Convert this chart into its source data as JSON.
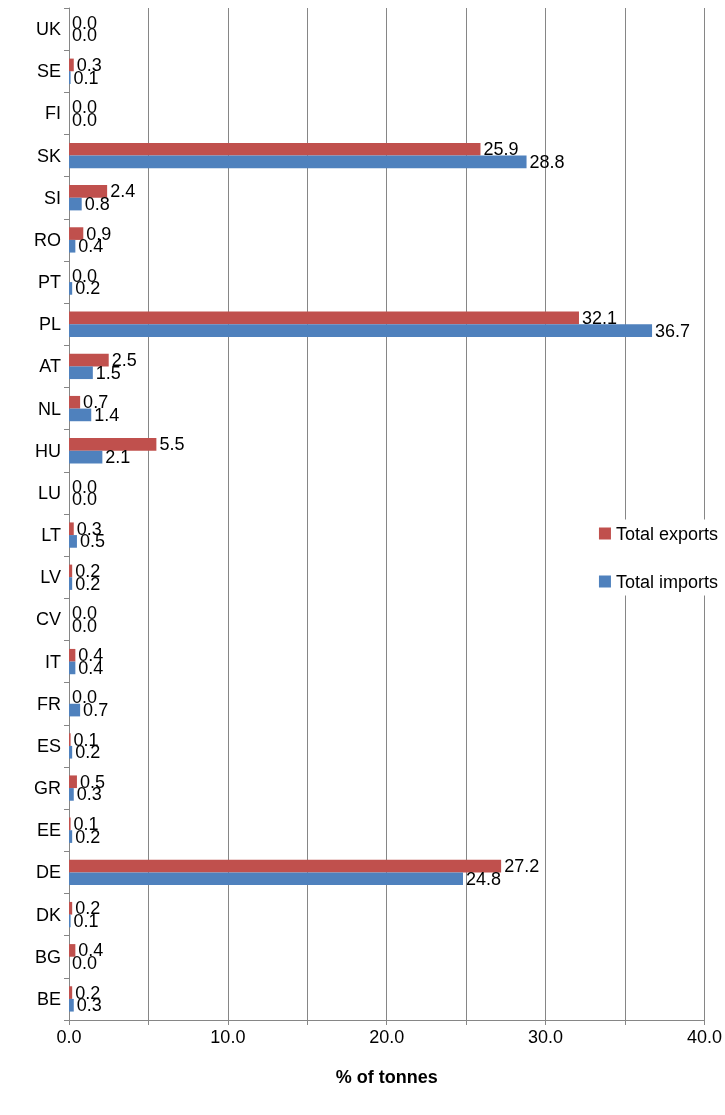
{
  "chart_data": {
    "type": "bar",
    "orientation": "horizontal",
    "xlabel": "% of tonnes",
    "categories": [
      "UK",
      "SE",
      "FI",
      "SK",
      "SI",
      "RO",
      "PT",
      "PL",
      "AT",
      "NL",
      "HU",
      "LU",
      "LT",
      "LV",
      "CV",
      "IT",
      "FR",
      "ES",
      "GR",
      "EE",
      "DE",
      "DK",
      "BG",
      "BE"
    ],
    "series": [
      {
        "name": "Total exports",
        "color": "#c0504d",
        "values": [
          0.0,
          0.3,
          0.0,
          25.9,
          2.4,
          0.9,
          0.0,
          32.1,
          2.5,
          0.7,
          5.5,
          0.0,
          0.3,
          0.2,
          0.0,
          0.4,
          0.0,
          0.1,
          0.5,
          0.1,
          27.2,
          0.2,
          0.4,
          0.2
        ],
        "value_labels": [
          "0.0",
          "0.3",
          "0.0",
          "25.9",
          "2.4",
          "0.9",
          "0.0",
          "32.1",
          "2.5",
          "0.7",
          "5.5",
          "0.0",
          "0.3",
          "0.2",
          "0.0",
          "0.4",
          "0.0",
          "0.1",
          "0.5",
          "0.1",
          "27.2",
          "0.2",
          "0.4",
          "0.2"
        ]
      },
      {
        "name": "Total imports",
        "color": "#4f81bd",
        "values": [
          0.0,
          0.1,
          0.0,
          28.8,
          0.8,
          0.4,
          0.2,
          36.7,
          1.5,
          1.4,
          2.1,
          0.0,
          0.5,
          0.2,
          0.0,
          0.4,
          0.7,
          0.2,
          0.3,
          0.2,
          24.8,
          0.1,
          0.0,
          0.3
        ],
        "value_labels": [
          "0.0",
          "0.1",
          "0.0",
          "28.8",
          "0.8",
          "0.4",
          "0.2",
          "36.7",
          "1.5",
          "1.4",
          "2.1",
          "0.0",
          "0.5",
          "0.2",
          "0.0",
          "0.4",
          "0.7",
          "0.2",
          "0.3",
          "0.2",
          "24.8",
          "0.1",
          "0.0",
          "0.3"
        ]
      }
    ],
    "xlim": [
      0,
      40
    ],
    "xticks": [
      {
        "value": 0,
        "label": "0.0"
      },
      {
        "value": 5,
        "label": null
      },
      {
        "value": 10,
        "label": "10.0"
      },
      {
        "value": 15,
        "label": null
      },
      {
        "value": 20,
        "label": "20.0"
      },
      {
        "value": 25,
        "label": null
      },
      {
        "value": 30,
        "label": "30.0"
      },
      {
        "value": 35,
        "label": null
      },
      {
        "value": 40,
        "label": "40.0"
      }
    ],
    "grid": "x",
    "legend": "right"
  }
}
